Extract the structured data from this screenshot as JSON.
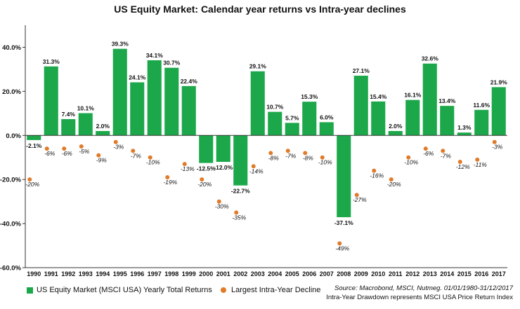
{
  "chart_data": {
    "type": "bar",
    "title": "US Equity Market: Calendar year returns vs Intra-year declines",
    "categories": [
      "1990",
      "1991",
      "1992",
      "1993",
      "1994",
      "1995",
      "1996",
      "1997",
      "1998",
      "1999",
      "2000",
      "2001",
      "2002",
      "2003",
      "2004",
      "2005",
      "2006",
      "2007",
      "2008",
      "2009",
      "2010",
      "2011",
      "2012",
      "2013",
      "2014",
      "2015",
      "2016",
      "2017"
    ],
    "series": [
      {
        "name": "US Equity Market (MSCI USA) Yearly Total Returns",
        "chart_type": "bar",
        "color": "#1ca84a",
        "values": [
          -2.1,
          31.3,
          7.4,
          10.1,
          2.0,
          39.3,
          24.1,
          34.1,
          30.7,
          22.4,
          -12.5,
          -12.0,
          -22.7,
          29.1,
          10.7,
          5.7,
          15.3,
          6.0,
          -37.1,
          27.1,
          15.4,
          2.0,
          16.1,
          32.6,
          13.4,
          1.3,
          11.6,
          21.9
        ],
        "labels": [
          "-2.1%",
          "31.3%",
          "7.4%",
          "10.1%",
          "2.0%",
          "39.3%",
          "24.1%",
          "34.1%",
          "30.7%",
          "22.4%",
          "-12.5%",
          "-12.0%",
          "-22.7%",
          "29.1%",
          "10.7%",
          "5.7%",
          "15.3%",
          "6.0%",
          "-37.1%",
          "27.1%",
          "15.4%",
          "2.0%",
          "16.1%",
          "32.6%",
          "13.4%",
          "1.3%",
          "11.6%",
          "21.9%"
        ]
      },
      {
        "name": "Largest Intra-Year Decline",
        "chart_type": "scatter",
        "color": "#e07b2a",
        "values": [
          -20,
          -6,
          -6,
          -5,
          -9,
          -3,
          -7,
          -10,
          -19,
          -13,
          -20,
          -30,
          -35,
          -14,
          -8,
          -7,
          -8,
          -10,
          -49,
          -27,
          -16,
          -20,
          -10,
          -6,
          -7,
          -12,
          -11,
          -3
        ],
        "labels": [
          "-20%",
          "-6%",
          "-6%",
          "-5%",
          "-9%",
          "-3%",
          "-7%",
          "-10%",
          "-19%",
          "-13%",
          "-20%",
          "-30%",
          "-35%",
          "-14%",
          "-8%",
          "-7%",
          "-8%",
          "-10%",
          "-49%",
          "-27%",
          "-16%",
          "-20%",
          "-10%",
          "-6%",
          "-7%",
          "-12%",
          "-11%",
          "-3%"
        ]
      }
    ],
    "ylim": [
      -60,
      50
    ],
    "yticks": [
      40,
      20,
      0,
      -20,
      -40,
      -60
    ],
    "ytick_labels": [
      "40.0%",
      "20.0%",
      "0.0%",
      "-20.0%",
      "-40.0%",
      "-60.0%"
    ],
    "grid": false,
    "legend": "bottom-left",
    "source": "Source: Macrobond, MSCI, Nutmeg. 01/01/1980-31/12/2017",
    "note": "Intra-Year Drawdown represents MSCI USA Price Return Index"
  }
}
